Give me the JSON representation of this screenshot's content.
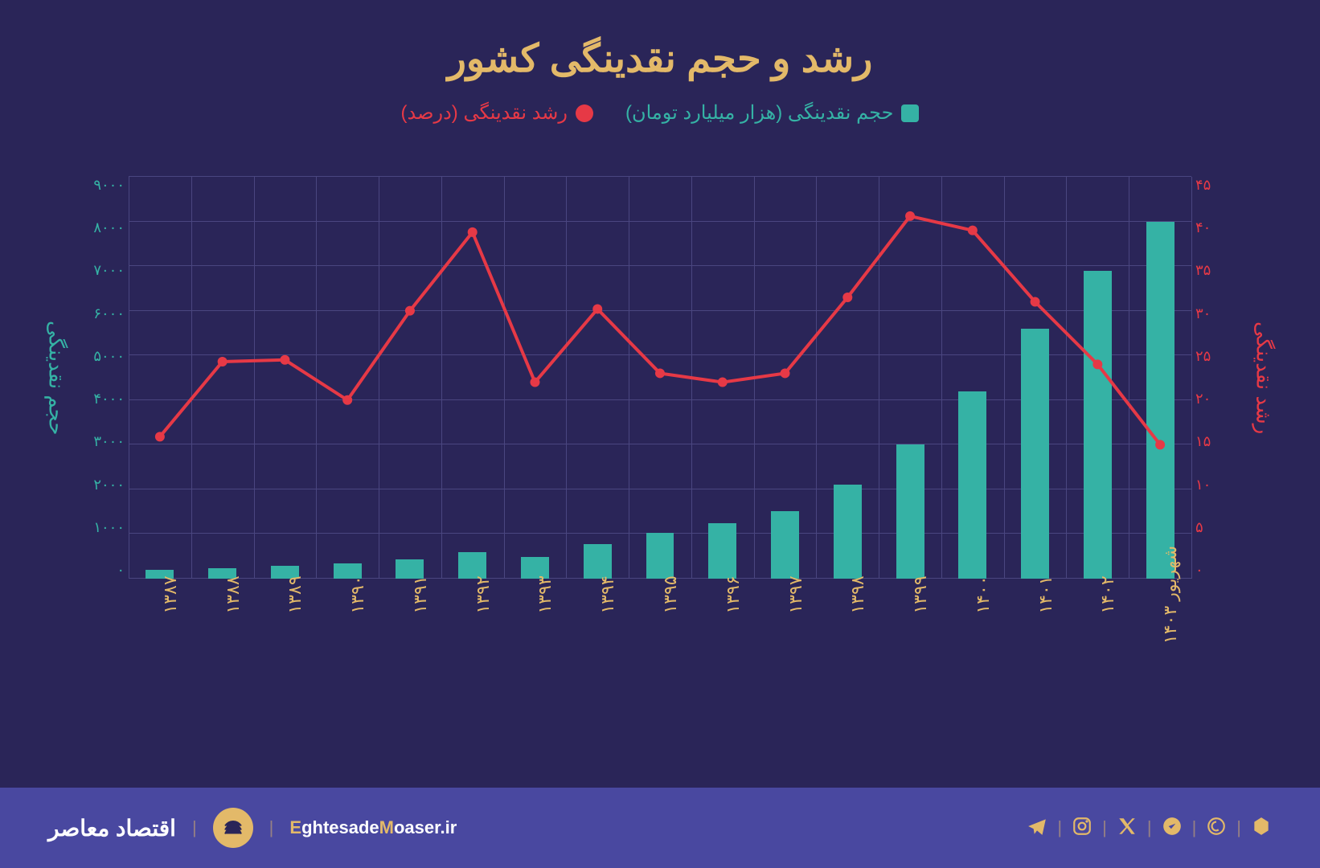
{
  "title": "رشد و حجم نقدینگی کشور",
  "legend": {
    "bars": "حجم نقدینگی (هزار میلیارد تومان)",
    "line": "رشد نقدینگی (درصد)"
  },
  "chart": {
    "type": "bar+line",
    "background_color": "#2a2558",
    "grid_color": "#4a4680",
    "bar_color": "#35b2a5",
    "line_color": "#e63946",
    "title_color": "#e3b969",
    "left_axis_color": "#35b2a5",
    "right_axis_color": "#e63946",
    "x_label_color": "#e3b969",
    "categories": [
      "۱۳۸۷",
      "۱۳۸۸",
      "۱۳۸۹",
      "۱۳۹۰",
      "۱۳۹۱",
      "۱۳۹۲",
      "۱۳۹۳",
      "۱۳۹۴",
      "۱۳۹۵",
      "۱۳۹۶",
      "۱۳۹۷",
      "۱۳۹۸",
      "۱۳۹۹",
      "۱۴۰۰",
      "۱۴۰۱",
      "۱۴۰۲",
      "شهریور ۱۴۰۳"
    ],
    "bar_values": [
      190,
      230,
      290,
      350,
      430,
      590,
      480,
      780,
      1020,
      1250,
      1520,
      2100,
      3000,
      4200,
      5600,
      6900,
      8000
    ],
    "line_values": [
      15.9,
      24.3,
      24.5,
      20,
      30,
      38.8,
      22,
      30.2,
      23,
      22,
      23,
      31.5,
      40.6,
      39,
      31,
      24,
      15
    ],
    "left_axis": {
      "min": 0,
      "max": 9000,
      "step": 1000,
      "ticks": [
        "۰",
        "۱۰۰۰",
        "۲۰۰۰",
        "۳۰۰۰",
        "۴۰۰۰",
        "۵۰۰۰",
        "۶۰۰۰",
        "۷۰۰۰",
        "۸۰۰۰",
        "۹۰۰۰"
      ],
      "title": "حجم نقدینگی"
    },
    "right_axis": {
      "min": 0,
      "max": 45,
      "step": 5,
      "ticks": [
        "۰",
        "۵",
        "۱۰",
        "۱۵",
        "۲۰",
        "۲۵",
        "۳۰",
        "۳۵",
        "۴۰",
        "۴۵"
      ],
      "title": "رشد نقدینگی"
    },
    "bar_width_ratio": 0.45,
    "line_width": 4,
    "marker_radius": 6
  },
  "footer": {
    "bg_color": "#4948a0",
    "text_color": "#e3b969",
    "brand_name": "اقتصاد معاصر",
    "logo_bg_color": "#e3b969",
    "url_prefix": "E",
    "url_mid": "ghtesade",
    "url_accent": "M",
    "url_suffix": "oaser.ir",
    "accent_color": "#e3b969",
    "icons": [
      "telegram-icon",
      "instagram-icon",
      "x-icon",
      "bale-icon",
      "eitaa-icon",
      "misc-icon"
    ]
  }
}
